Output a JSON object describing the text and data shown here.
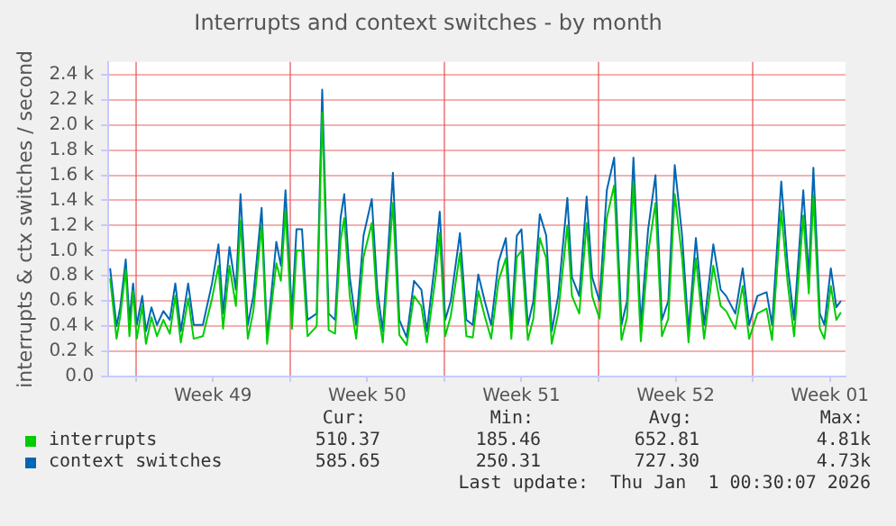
{
  "chart_data": {
    "type": "line",
    "title": "Interrupts and context switches - by month",
    "ylabel": "interrupts & ctx switches / second",
    "x": [
      "2025-11-29T20:00",
      "2025-11-30T03:00",
      "2025-11-30T07:00",
      "2025-11-30T13:00",
      "2025-11-30T17:00",
      "2025-11-30T21:00",
      "2025-12-01T01:00",
      "2025-12-01T07:00",
      "2025-12-01T11:00",
      "2025-12-01T17:00",
      "2025-12-01T23:00",
      "2025-12-02T06:00",
      "2025-12-02T13:00",
      "2025-12-02T19:00",
      "2025-12-03T01:00",
      "2025-12-03T09:00",
      "2025-12-03T15:00",
      "2025-12-04T01:00",
      "2025-12-04T11:00",
      "2025-12-04T18:00",
      "2025-12-04T23:00",
      "2025-12-05T06:00",
      "2025-12-05T13:00",
      "2025-12-05T18:00",
      "2025-12-06T02:00",
      "2025-12-06T08:00",
      "2025-12-06T17:00",
      "2025-12-06T23:00",
      "2025-12-07T09:00",
      "2025-12-07T14:00",
      "2025-12-07T19:00",
      "2025-12-08T02:00",
      "2025-12-08T07:00",
      "2025-12-08T13:00",
      "2025-12-08T19:00",
      "2025-12-09T05:00",
      "2025-12-09T11:00",
      "2025-12-09T18:00",
      "2025-12-10T01:00",
      "2025-12-10T07:00",
      "2025-12-10T11:00",
      "2025-12-10T17:00",
      "2025-12-11T00:00",
      "2025-12-11T08:00",
      "2025-12-11T17:00",
      "2025-12-11T23:00",
      "2025-12-12T05:00",
      "2025-12-12T11:00",
      "2025-12-12T16:00",
      "2025-12-12T23:00",
      "2025-12-13T07:00",
      "2025-12-13T15:00",
      "2025-12-13T23:00",
      "2025-12-14T05:00",
      "2025-12-14T15:00",
      "2025-12-14T19:00",
      "2025-12-15T01:00",
      "2025-12-15T07:00",
      "2025-12-15T17:00",
      "2025-12-16T00:00",
      "2025-12-16T07:00",
      "2025-12-16T13:00",
      "2025-12-16T20:00",
      "2025-12-17T03:00",
      "2025-12-17T11:00",
      "2025-12-17T19:00",
      "2025-12-18T01:00",
      "2025-12-18T07:00",
      "2025-12-18T12:00",
      "2025-12-18T19:00",
      "2025-12-19T01:00",
      "2025-12-19T08:00",
      "2025-12-19T15:00",
      "2025-12-19T21:00",
      "2025-12-20T04:00",
      "2025-12-20T14:00",
      "2025-12-20T19:00",
      "2025-12-21T03:00",
      "2025-12-21T11:00",
      "2025-12-21T17:00",
      "2025-12-22T01:00",
      "2025-12-22T09:00",
      "2025-12-22T17:00",
      "2025-12-23T01:00",
      "2025-12-23T07:00",
      "2025-12-23T14:00",
      "2025-12-23T22:00",
      "2025-12-24T06:00",
      "2025-12-24T14:00",
      "2025-12-24T21:00",
      "2025-12-25T04:00",
      "2025-12-25T11:00",
      "2025-12-25T19:00",
      "2025-12-26T02:00",
      "2025-12-26T10:00",
      "2025-12-26T19:00",
      "2025-12-27T05:00",
      "2025-12-27T13:00",
      "2025-12-27T19:00",
      "2025-12-28T05:00",
      "2025-12-28T13:00",
      "2025-12-28T20:00",
      "2025-12-29T05:00",
      "2025-12-29T15:00",
      "2025-12-29T21:00",
      "2025-12-30T07:00",
      "2025-12-30T14:00",
      "2025-12-30T21:00",
      "2025-12-31T07:00",
      "2025-12-31T13:00",
      "2025-12-31T18:00",
      "2026-01-01T01:00",
      "2026-01-01T06:00",
      "2026-01-01T13:00",
      "2026-01-01T19:00",
      "2026-01-02T00:00"
    ],
    "series": [
      {
        "name": "interrupts",
        "color": "#00cc00",
        "values": [
          780,
          300,
          480,
          850,
          320,
          680,
          300,
          560,
          260,
          470,
          320,
          450,
          340,
          640,
          270,
          620,
          300,
          320,
          620,
          880,
          380,
          880,
          560,
          1240,
          300,
          520,
          1200,
          260,
          900,
          760,
          1320,
          380,
          1000,
          1000,
          320,
          400,
          2100,
          370,
          340,
          1080,
          1260,
          640,
          300,
          950,
          1220,
          560,
          270,
          880,
          1380,
          330,
          250,
          640,
          560,
          270,
          820,
          1140,
          320,
          480,
          980,
          320,
          310,
          680,
          480,
          300,
          760,
          940,
          300,
          950,
          1000,
          290,
          460,
          1100,
          940,
          260,
          500,
          1200,
          640,
          500,
          1220,
          640,
          460,
          1260,
          1520,
          290,
          470,
          1540,
          280,
          980,
          1380,
          320,
          460,
          1450,
          940,
          270,
          940,
          300,
          880,
          560,
          520,
          380,
          720,
          300,
          500,
          540,
          290,
          1320,
          740,
          320,
          1280,
          660,
          1440,
          380,
          300,
          720,
          450,
          510
        ]
      },
      {
        "name": "context switches",
        "color": "#0066b3",
        "values": [
          860,
          400,
          550,
          930,
          450,
          740,
          410,
          640,
          360,
          550,
          410,
          520,
          450,
          740,
          360,
          740,
          410,
          410,
          740,
          1050,
          500,
          1030,
          690,
          1450,
          410,
          640,
          1340,
          310,
          1070,
          880,
          1480,
          500,
          1170,
          1170,
          450,
          500,
          2280,
          500,
          450,
          1260,
          1450,
          790,
          410,
          1120,
          1410,
          690,
          360,
          1030,
          1620,
          450,
          310,
          760,
          690,
          360,
          980,
          1310,
          450,
          600,
          1140,
          450,
          410,
          810,
          600,
          410,
          910,
          1100,
          410,
          1120,
          1170,
          410,
          600,
          1290,
          1120,
          360,
          640,
          1420,
          790,
          640,
          1430,
          790,
          600,
          1480,
          1740,
          410,
          600,
          1740,
          410,
          1170,
          1600,
          450,
          600,
          1680,
          1120,
          360,
          1100,
          410,
          1050,
          690,
          640,
          500,
          860,
          410,
          640,
          670,
          410,
          1550,
          880,
          450,
          1480,
          790,
          1660,
          500,
          410,
          860,
          550,
          600
        ]
      }
    ],
    "xlim": [
      "2025-11-29T18:00",
      "2026-01-02T05:00"
    ],
    "xticks": [
      {
        "value": "2025-12-01",
        "label": null
      },
      {
        "value": "2025-12-04T12:00",
        "label": "Week 49"
      },
      {
        "value": "2025-12-08",
        "label": null
      },
      {
        "value": "2025-12-11T12:00",
        "label": "Week 50"
      },
      {
        "value": "2025-12-15",
        "label": null
      },
      {
        "value": "2025-12-18T12:00",
        "label": "Week 51"
      },
      {
        "value": "2025-12-22",
        "label": null
      },
      {
        "value": "2025-12-25T12:00",
        "label": "Week 52"
      },
      {
        "value": "2025-12-29",
        "label": null
      },
      {
        "value": "2026-01-01T12:00",
        "label": "Week 01"
      }
    ],
    "ylim": [
      0,
      2500
    ],
    "yticks": [
      {
        "value": 0,
        "label": "0.0"
      },
      {
        "value": 200,
        "label": "0.2 k"
      },
      {
        "value": 400,
        "label": "0.4 k"
      },
      {
        "value": 600,
        "label": "0.6 k"
      },
      {
        "value": 800,
        "label": "0.8 k"
      },
      {
        "value": 1000,
        "label": "1.0 k"
      },
      {
        "value": 1200,
        "label": "1.2 k"
      },
      {
        "value": 1400,
        "label": "1.4 k"
      },
      {
        "value": 1600,
        "label": "1.6 k"
      },
      {
        "value": 1800,
        "label": "1.8 k"
      },
      {
        "value": 2000,
        "label": "2.0 k"
      },
      {
        "value": 2200,
        "label": "2.2 k"
      },
      {
        "value": 2400,
        "label": "2.4 k"
      }
    ],
    "grid": true,
    "legend": "bottom",
    "marker": "none",
    "line_style": "solid",
    "annotations": [
      "Cur:",
      "Min:",
      "Avg:",
      "Max:",
      "510.37",
      "185.46",
      "652.81",
      "4.81k",
      "585.65",
      "250.31",
      "727.30",
      "4.73k",
      "Last update:  Thu Jan  1 00:30:07 2026"
    ]
  }
}
